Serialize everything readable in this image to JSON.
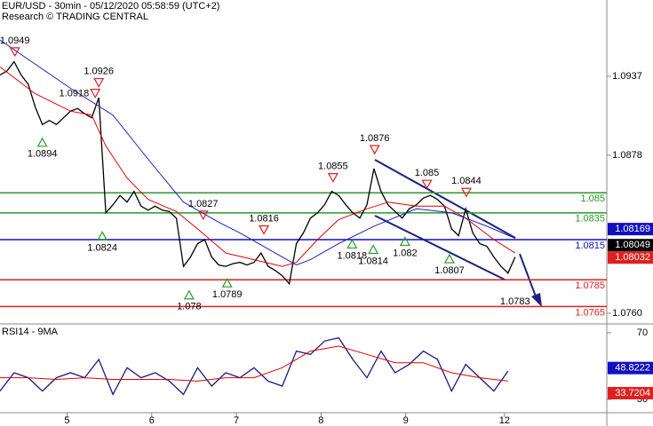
{
  "chart_data": [
    {
      "type": "line",
      "title": "EUR/USD - 30min - 05/12/2020 05:58:59 (UTC+2)",
      "subtitle": "Research © TRADING CENTRAL",
      "xlim": [
        0,
        86
      ],
      "xticks": [
        {
          "value": 9.5,
          "label": "5"
        },
        {
          "value": 21.5,
          "label": "6"
        },
        {
          "value": 33.5,
          "label": "7"
        },
        {
          "value": 45.5,
          "label": "8"
        },
        {
          "value": 57.5,
          "label": "9"
        },
        {
          "value": 71.5,
          "label": "12"
        }
      ],
      "ylim": [
        1.0752,
        1.0994
      ],
      "yticks": [
        1.0937,
        1.0878,
        {
          "value": 1.076,
          "label": "1.0760"
        }
      ],
      "x": [
        0,
        1,
        2,
        3,
        4,
        5,
        6,
        7,
        8,
        9,
        10,
        11,
        12,
        13,
        14,
        15,
        16,
        17,
        18,
        19,
        20,
        21,
        22,
        23,
        24,
        25,
        26,
        27,
        28,
        29,
        30,
        31,
        32,
        33,
        34,
        35,
        36,
        37,
        38,
        39,
        40,
        41,
        42,
        43,
        44,
        45,
        46,
        47,
        48,
        49,
        50,
        51,
        52,
        53,
        54,
        55,
        56,
        57,
        58,
        59,
        60,
        61,
        62,
        63,
        64,
        65,
        66,
        67,
        68,
        69,
        70,
        71,
        72,
        73
      ],
      "series": [
        {
          "color": "#000000",
          "values": [
            1.0938,
            1.0941,
            1.0948,
            1.0938,
            1.0931,
            1.0914,
            1.0901,
            1.0904,
            1.0901,
            1.0906,
            1.0911,
            1.0913,
            1.0909,
            1.0906,
            1.0921,
            1.0835,
            1.0841,
            1.0848,
            1.0843,
            1.0851,
            1.084,
            1.0837,
            1.084,
            1.0837,
            1.0836,
            1.0831,
            1.0795,
            1.0802,
            1.0812,
            1.0815,
            1.0802,
            1.0796,
            1.0795,
            1.0797,
            1.0798,
            1.0796,
            1.0798,
            1.0805,
            1.0795,
            1.0792,
            1.0788,
            1.0782,
            1.0812,
            1.082,
            1.0831,
            1.0835,
            1.0841,
            1.0851,
            1.0848,
            1.0841,
            1.0835,
            1.0831,
            1.0841,
            1.0868,
            1.0851,
            1.0841,
            1.0836,
            1.0831,
            1.0838,
            1.0841,
            1.0846,
            1.0848,
            1.0845,
            1.084,
            1.0823,
            1.0818,
            1.0838,
            1.082,
            1.0812,
            1.081,
            1.0802,
            1.0795,
            1.079,
            1.0802
          ]
        },
        {
          "color": "#e00000",
          "x": [
            0,
            5,
            10,
            13,
            15,
            18,
            21,
            25,
            28,
            32,
            36,
            40,
            42,
            45,
            48,
            52,
            55,
            59,
            63,
            66,
            70,
            73
          ],
          "values": [
            1.0944,
            1.0924,
            1.0911,
            1.0908,
            1.0885,
            1.0861,
            1.0845,
            1.0836,
            1.0823,
            1.0805,
            1.08,
            1.0795,
            1.0798,
            1.0815,
            1.083,
            1.0838,
            1.0843,
            1.084,
            1.084,
            1.0831,
            1.0815,
            1.0805
          ]
        },
        {
          "color": "#2020c0",
          "x": [
            0,
            10,
            16,
            21,
            26,
            31,
            34,
            39,
            42,
            44,
            48,
            53,
            59,
            64,
            69,
            73
          ],
          "values": [
            1.0964,
            1.0928,
            1.0908,
            1.0875,
            1.0843,
            1.0828,
            1.082,
            1.0805,
            1.0796,
            1.08,
            1.0812,
            1.0825,
            1.0838,
            1.0835,
            1.0825,
            1.0816
          ]
        }
      ],
      "levels": [
        {
          "value": 1.085,
          "color": "#2a9a2a"
        },
        {
          "value": 1.0835,
          "color": "#2a9a2a"
        },
        {
          "value": 1.0815,
          "color": "#1010c0"
        },
        {
          "value": 1.0785,
          "color": "#e02020"
        },
        {
          "value": 1.0765,
          "color": "#e02020"
        }
      ],
      "price_boxes": [
        {
          "value": 1.08169,
          "color": "#1010c0"
        },
        {
          "value": 1.08049,
          "color": "#000000"
        },
        {
          "value": 1.08032,
          "color": "#e02020"
        }
      ],
      "annotations": [
        {
          "value": 1.0949,
          "x": 2.1,
          "dir": "down"
        },
        {
          "value": 1.0894,
          "x": 6,
          "dir": "up"
        },
        {
          "value": 1.0918,
          "x": 13.5,
          "dir": "down"
        },
        {
          "value": 1.0926,
          "x": 14,
          "dir": "down"
        },
        {
          "value": 1.0824,
          "x": 14.5,
          "dir": "up"
        },
        {
          "value": 1.078,
          "x": 26.8,
          "dir": "up"
        },
        {
          "value": 1.0827,
          "x": 28.8,
          "dir": "down"
        },
        {
          "value": 1.0789,
          "x": 32.2,
          "dir": "up"
        },
        {
          "value": 1.0816,
          "x": 37.4,
          "dir": "down"
        },
        {
          "value": 1.0855,
          "x": 47.2,
          "dir": "down"
        },
        {
          "value": 1.0818,
          "x": 49.9,
          "dir": "up"
        },
        {
          "value": 1.0876,
          "x": 53.1,
          "dir": "down"
        },
        {
          "value": 1.0814,
          "x": 52.9,
          "dir": "up"
        },
        {
          "value": 1.082,
          "x": 57.4,
          "dir": "up"
        },
        {
          "value": 1.085,
          "x": 60.5,
          "dir": "down"
        },
        {
          "value": 1.0807,
          "x": 63.7,
          "dir": "up"
        },
        {
          "value": 1.0844,
          "x": 66.1,
          "dir": "down"
        },
        {
          "value": 1.0783,
          "x": 73,
          "dir": "none"
        }
      ]
    },
    {
      "type": "line",
      "title": "RSI14 - 9MA",
      "xlim": [
        0,
        86
      ],
      "ylim": [
        22,
        75.3
      ],
      "yticks": [
        70,
        30
      ],
      "series": [
        {
          "color": "#1a1a80",
          "x": [
            0,
            2,
            4,
            6,
            8,
            10,
            12,
            14,
            16,
            18,
            20,
            22,
            24,
            26,
            28,
            30,
            32,
            34,
            36,
            38,
            40,
            42,
            44,
            46,
            48,
            50,
            52,
            54,
            56,
            58,
            60,
            62,
            64,
            66,
            68,
            70,
            72
          ],
          "values": [
            35,
            46,
            43,
            35,
            43,
            46,
            43,
            54,
            33,
            49,
            43,
            46,
            41,
            33,
            49,
            38,
            46,
            43,
            49,
            41,
            38,
            59,
            57,
            65,
            67,
            54,
            43,
            59,
            46,
            51,
            59,
            54,
            35,
            51,
            43,
            35,
            47
          ]
        },
        {
          "color": "#e00000",
          "x": [
            0,
            4,
            8,
            12,
            16,
            20,
            24,
            28,
            32,
            36,
            40,
            44,
            48,
            52,
            56,
            60,
            64,
            68,
            72
          ],
          "values": [
            43,
            43,
            42,
            43,
            42,
            42,
            42,
            41,
            43,
            43,
            49,
            59,
            62,
            57,
            52,
            52,
            46,
            43,
            41
          ]
        }
      ],
      "price_boxes": [
        {
          "value": 48.8222,
          "color": "#1010c0"
        },
        {
          "value": 33.7204,
          "color": "#e02020"
        }
      ]
    }
  ]
}
